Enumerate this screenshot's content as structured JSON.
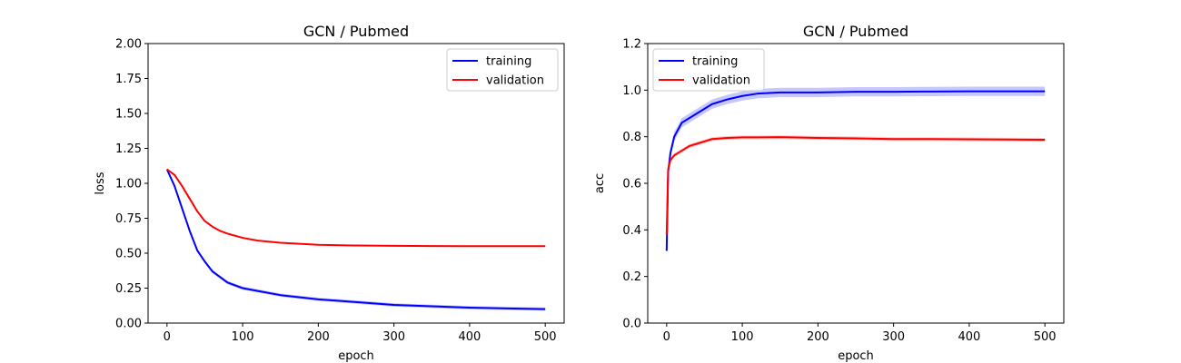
{
  "chart_data": [
    {
      "type": "line",
      "title": "GCN / Pubmed",
      "xlabel": "epoch",
      "ylabel": "loss",
      "xlim": [
        -25,
        525
      ],
      "ylim": [
        0.0,
        2.0
      ],
      "xticks": [
        0,
        100,
        200,
        300,
        400,
        500
      ],
      "yticks": [
        0.0,
        0.25,
        0.5,
        0.75,
        1.0,
        1.25,
        1.5,
        1.75,
        2.0
      ],
      "ytick_labels": [
        "0.00",
        "0.25",
        "0.50",
        "0.75",
        "1.00",
        "1.25",
        "1.50",
        "1.75",
        "2.00"
      ],
      "legend": "top-right",
      "series": [
        {
          "name": "training",
          "color": "#0000ff",
          "band": 0.012,
          "x": [
            0,
            10,
            20,
            30,
            40,
            50,
            60,
            70,
            80,
            100,
            120,
            150,
            200,
            250,
            300,
            350,
            400,
            450,
            500
          ],
          "y": [
            1.1,
            0.98,
            0.82,
            0.66,
            0.52,
            0.44,
            0.37,
            0.33,
            0.29,
            0.25,
            0.23,
            0.2,
            0.17,
            0.15,
            0.13,
            0.12,
            0.11,
            0.105,
            0.1
          ]
        },
        {
          "name": "validation",
          "color": "#ff0000",
          "band": 0.004,
          "x": [
            0,
            10,
            20,
            30,
            40,
            50,
            60,
            70,
            80,
            100,
            120,
            150,
            200,
            250,
            300,
            350,
            400,
            450,
            500
          ],
          "y": [
            1.1,
            1.06,
            0.98,
            0.89,
            0.8,
            0.73,
            0.69,
            0.66,
            0.64,
            0.61,
            0.59,
            0.575,
            0.56,
            0.555,
            0.553,
            0.551,
            0.55,
            0.55,
            0.55
          ]
        }
      ]
    },
    {
      "type": "line",
      "title": "GCN / Pubmed",
      "xlabel": "epoch",
      "ylabel": "acc",
      "xlim": [
        -25,
        525
      ],
      "ylim": [
        0.0,
        1.2
      ],
      "xticks": [
        0,
        100,
        200,
        300,
        400,
        500
      ],
      "yticks": [
        0.0,
        0.2,
        0.4,
        0.6,
        0.8,
        1.0,
        1.2
      ],
      "ytick_labels": [
        "0.0",
        "0.2",
        "0.4",
        "0.6",
        "0.8",
        "1.0",
        "1.2"
      ],
      "legend": "top-left",
      "series": [
        {
          "name": "training",
          "color": "#0000ff",
          "band": 0.02,
          "x": [
            0,
            2,
            5,
            10,
            20,
            30,
            40,
            50,
            60,
            80,
            100,
            120,
            150,
            200,
            250,
            300,
            350,
            400,
            450,
            500
          ],
          "y": [
            0.31,
            0.65,
            0.73,
            0.8,
            0.86,
            0.88,
            0.9,
            0.92,
            0.94,
            0.96,
            0.975,
            0.985,
            0.99,
            0.99,
            0.993,
            0.993,
            0.994,
            0.995,
            0.995,
            0.995
          ]
        },
        {
          "name": "validation",
          "color": "#ff0000",
          "band": 0.008,
          "x": [
            0,
            2,
            5,
            10,
            20,
            30,
            40,
            50,
            60,
            80,
            100,
            120,
            150,
            200,
            250,
            300,
            350,
            400,
            450,
            500
          ],
          "y": [
            0.38,
            0.66,
            0.7,
            0.72,
            0.74,
            0.76,
            0.77,
            0.78,
            0.79,
            0.795,
            0.797,
            0.797,
            0.798,
            0.795,
            0.793,
            0.79,
            0.79,
            0.789,
            0.788,
            0.787
          ]
        }
      ]
    }
  ]
}
